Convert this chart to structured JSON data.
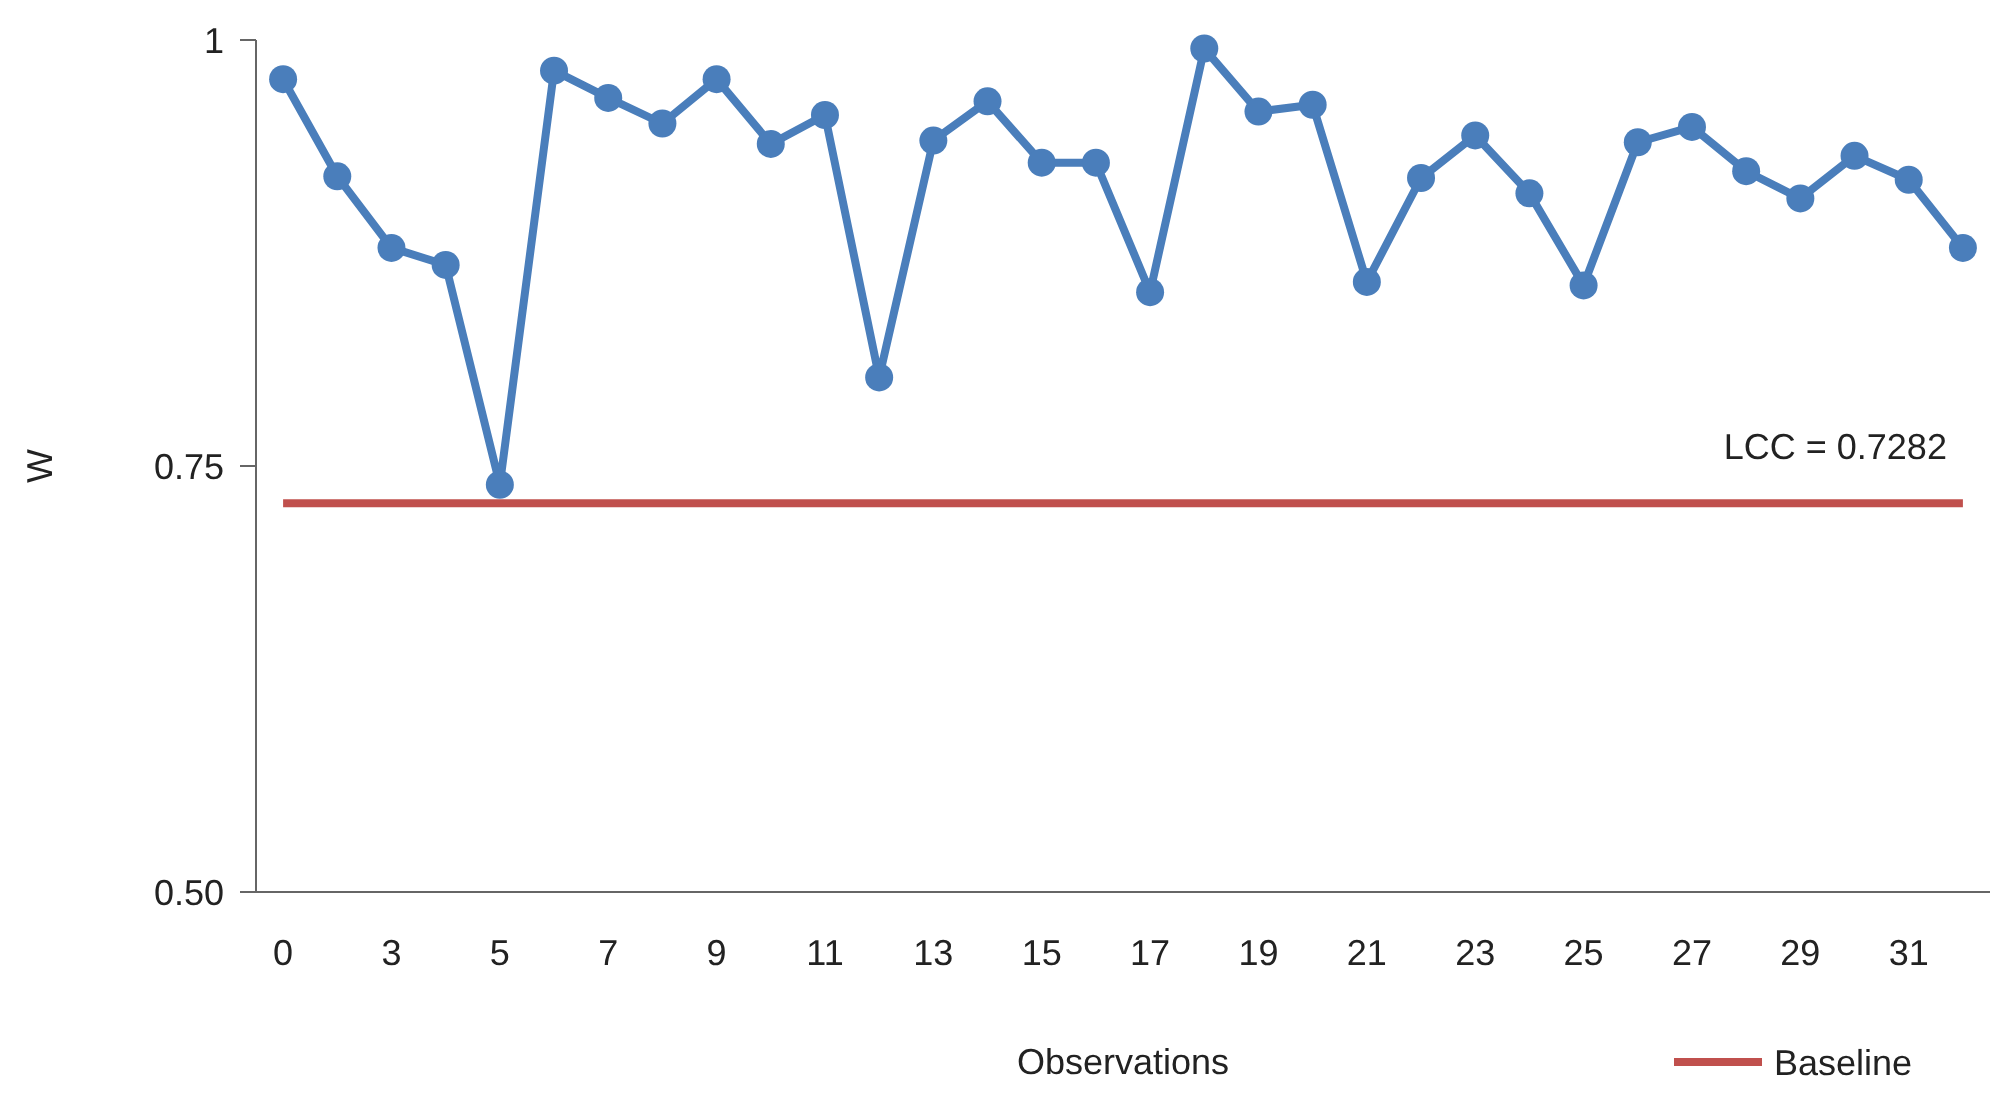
{
  "chart_data": {
    "type": "line",
    "xlabel": "Observations",
    "ylabel": "W",
    "categories": [
      "0",
      null,
      "3",
      null,
      "5",
      null,
      "7",
      null,
      "9",
      null,
      "11",
      null,
      "13",
      null,
      "15",
      null,
      "17",
      null,
      "19",
      null,
      "21",
      null,
      "23",
      null,
      "25",
      null,
      "27",
      null,
      "29",
      null,
      "31",
      null
    ],
    "series": [
      {
        "color": "#4a7ebb",
        "marker": "circle",
        "values": [
          0.977,
          0.92,
          0.878,
          0.868,
          0.739,
          0.982,
          0.966,
          0.951,
          0.977,
          0.939,
          0.956,
          0.802,
          0.941,
          0.964,
          0.928,
          0.928,
          0.852,
          0.995,
          0.958,
          0.962,
          0.858,
          0.919,
          0.944,
          0.91,
          0.856,
          0.94,
          0.949,
          0.923,
          0.907,
          0.932,
          0.918,
          0.878
        ]
      },
      {
        "name": "Baseline",
        "color": "#c0504d",
        "marker": "none",
        "values": [
          0.7282,
          0.7282,
          0.7282,
          0.7282,
          0.7282,
          0.7282,
          0.7282,
          0.7282,
          0.7282,
          0.7282,
          0.7282,
          0.7282,
          0.7282,
          0.7282,
          0.7282,
          0.7282,
          0.7282,
          0.7282,
          0.7282,
          0.7282,
          0.7282,
          0.7282,
          0.7282,
          0.7282,
          0.7282,
          0.7282,
          0.7282,
          0.7282,
          0.7282,
          0.7282,
          0.7282,
          0.7282
        ]
      }
    ],
    "annotations": [
      "LCC = 0.7282"
    ],
    "ylim": [
      0.5,
      1
    ],
    "yticks": [
      {
        "value": 0.5,
        "label": "0.50"
      },
      0.75,
      1
    ],
    "grid": false,
    "legend": "bottom right",
    "line_style": "solid"
  }
}
